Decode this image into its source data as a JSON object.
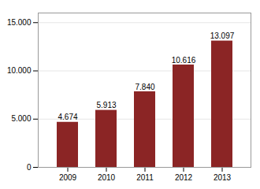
{
  "chart_data": {
    "type": "bar",
    "categories": [
      "2009",
      "2010",
      "2011",
      "2012",
      "2013"
    ],
    "values": [
      4674,
      5913,
      7840,
      10616,
      13097
    ],
    "value_labels": [
      "4.674",
      "5.913",
      "7.840",
      "10.616",
      "13.097"
    ],
    "data_labels": true,
    "color": "#8B2525",
    "ylim": [
      0,
      16000
    ],
    "yticks": [
      0,
      {
        "value": 5000,
        "label": "5.000"
      },
      {
        "value": 10000,
        "label": "10.000"
      },
      {
        "value": 15000,
        "label": "15.000"
      }
    ],
    "grid": true
  }
}
